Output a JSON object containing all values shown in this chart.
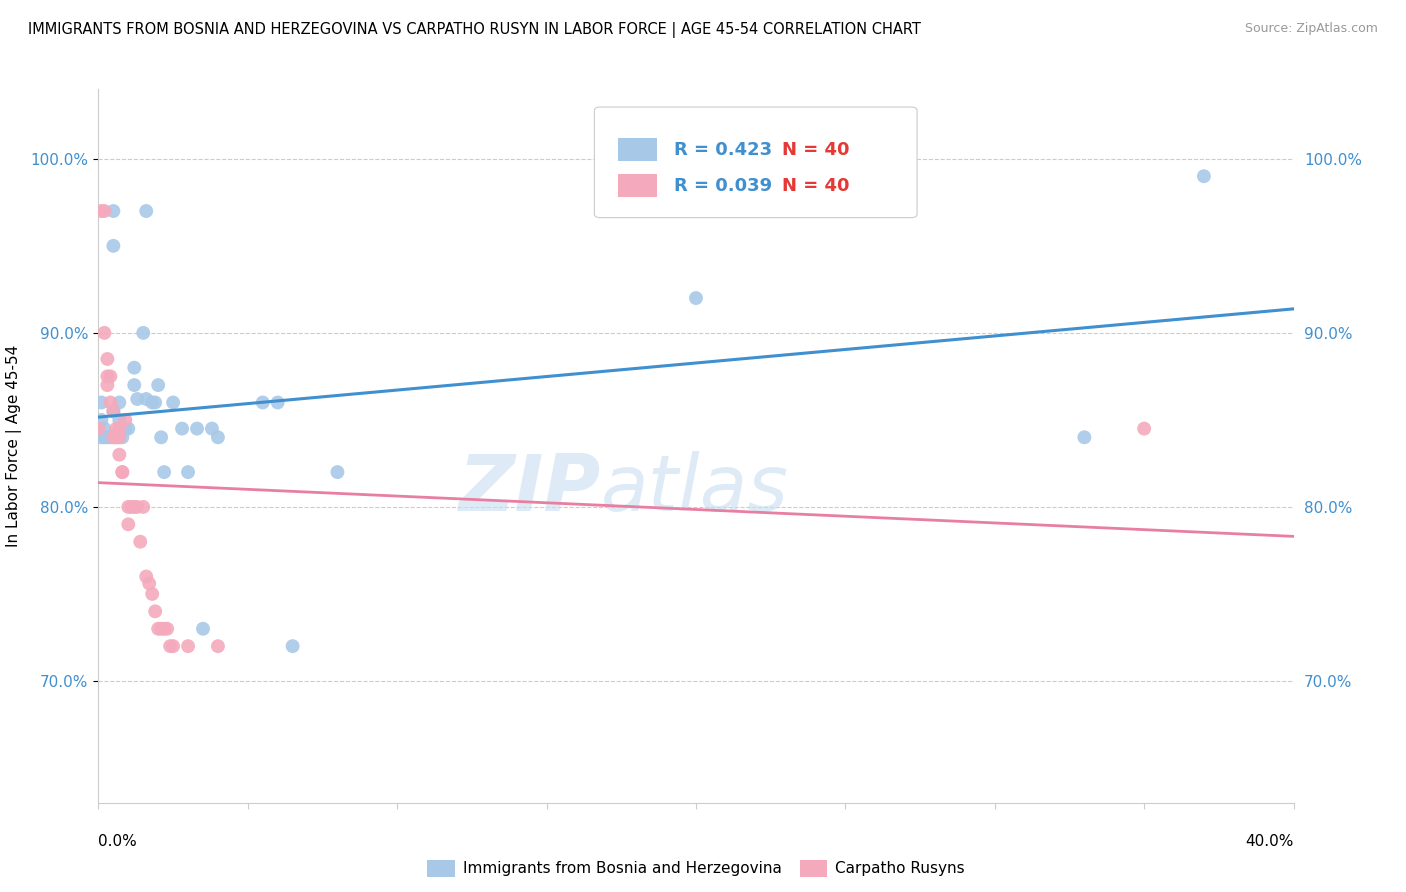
{
  "title": "IMMIGRANTS FROM BOSNIA AND HERZEGOVINA VS CARPATHO RUSYN IN LABOR FORCE | AGE 45-54 CORRELATION CHART",
  "source": "Source: ZipAtlas.com",
  "ylabel": "In Labor Force | Age 45-54",
  "y_ticks": [
    0.7,
    0.8,
    0.9,
    1.0
  ],
  "y_tick_labels": [
    "70.0%",
    "80.0%",
    "90.0%",
    "100.0%"
  ],
  "x_range": [
    0.0,
    0.4
  ],
  "y_range": [
    0.63,
    1.04
  ],
  "bosnia_R": 0.423,
  "bosnia_N": 40,
  "carpatho_R": 0.039,
  "carpatho_N": 40,
  "bosnia_color": "#A8C8E8",
  "carpatho_color": "#F4AABC",
  "bosnia_line_color": "#4090D0",
  "carpatho_line_color": "#E87FA0",
  "tick_color": "#4090D0",
  "bosnia_x": [
    0.001,
    0.005,
    0.016,
    0.005,
    0.001,
    0.001,
    0.002,
    0.002,
    0.003,
    0.004,
    0.005,
    0.007,
    0.007,
    0.008,
    0.009,
    0.01,
    0.012,
    0.012,
    0.013,
    0.015,
    0.016,
    0.018,
    0.019,
    0.02,
    0.021,
    0.022,
    0.025,
    0.028,
    0.03,
    0.033,
    0.035,
    0.038,
    0.04,
    0.055,
    0.06,
    0.065,
    0.08,
    0.2,
    0.33,
    0.37
  ],
  "bosnia_y": [
    0.86,
    0.95,
    0.97,
    0.97,
    0.85,
    0.84,
    0.84,
    0.845,
    0.84,
    0.84,
    0.855,
    0.85,
    0.86,
    0.84,
    0.845,
    0.845,
    0.88,
    0.87,
    0.862,
    0.9,
    0.862,
    0.86,
    0.86,
    0.87,
    0.84,
    0.82,
    0.86,
    0.845,
    0.82,
    0.845,
    0.73,
    0.845,
    0.84,
    0.86,
    0.86,
    0.72,
    0.82,
    0.92,
    0.84,
    0.99
  ],
  "carpatho_x": [
    0.0,
    0.001,
    0.002,
    0.002,
    0.003,
    0.003,
    0.003,
    0.004,
    0.004,
    0.005,
    0.005,
    0.006,
    0.006,
    0.006,
    0.007,
    0.007,
    0.007,
    0.008,
    0.008,
    0.009,
    0.01,
    0.01,
    0.011,
    0.012,
    0.013,
    0.014,
    0.015,
    0.016,
    0.017,
    0.018,
    0.019,
    0.02,
    0.021,
    0.022,
    0.023,
    0.024,
    0.025,
    0.03,
    0.04,
    0.35
  ],
  "carpatho_y": [
    0.845,
    0.97,
    0.97,
    0.9,
    0.885,
    0.875,
    0.87,
    0.875,
    0.86,
    0.855,
    0.84,
    0.845,
    0.84,
    0.84,
    0.845,
    0.84,
    0.83,
    0.82,
    0.82,
    0.85,
    0.8,
    0.79,
    0.8,
    0.8,
    0.8,
    0.78,
    0.8,
    0.76,
    0.756,
    0.75,
    0.74,
    0.73,
    0.73,
    0.73,
    0.73,
    0.72,
    0.72,
    0.72,
    0.72,
    0.845
  ],
  "grid_color": "#CCCCCC",
  "spine_color": "#CCCCCC"
}
